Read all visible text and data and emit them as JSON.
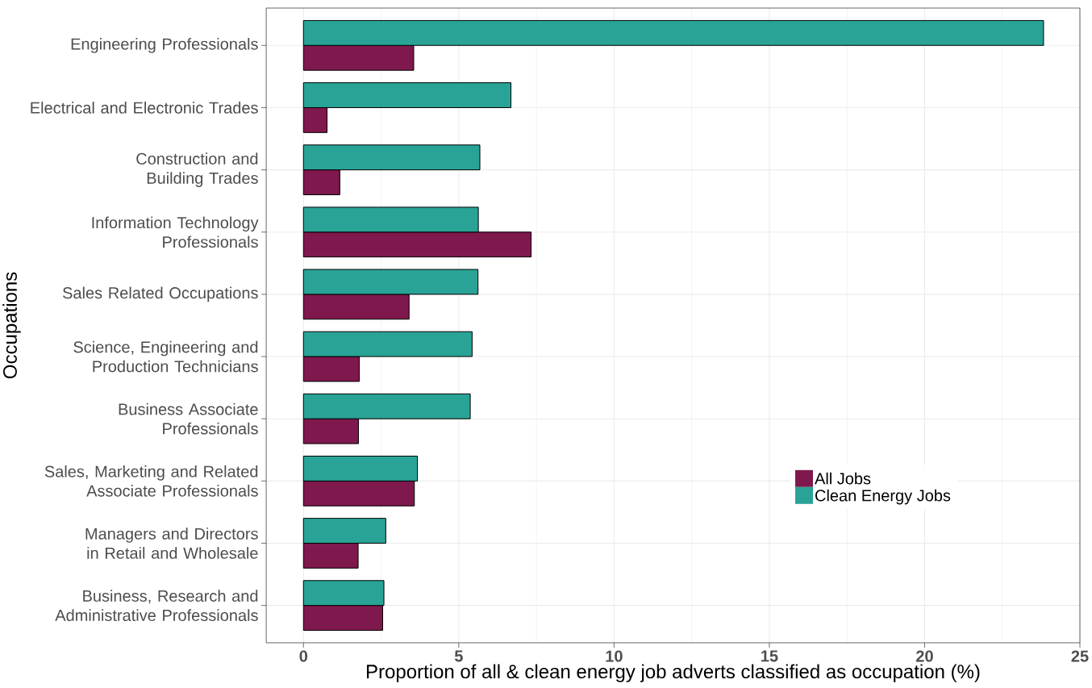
{
  "chart_data": {
    "type": "bar",
    "orientation": "horizontal",
    "xlabel": "Proportion of all & clean energy job adverts classified as occupation (%)",
    "ylabel": "Occupations",
    "categories": [
      "Engineering Professionals",
      "Electrical and Electronic Trades",
      "Construction and Building Trades",
      "Information Technology Professionals",
      "Sales Related Occupations",
      "Science, Engineering and Production Technicians",
      "Business Associate Professionals",
      "Sales, Marketing and Related Associate Professionals",
      "Managers and Directors in Retail and Wholesale",
      "Business, Research and Administrative Professionals"
    ],
    "series": [
      {
        "name": "All Jobs",
        "color": "#7f184d",
        "values": [
          3.55,
          0.76,
          1.17,
          7.33,
          3.4,
          1.8,
          1.77,
          3.57,
          1.76,
          2.55
        ]
      },
      {
        "name": "Clean Energy Jobs",
        "color": "#29a396",
        "values": [
          23.83,
          6.68,
          5.68,
          5.63,
          5.62,
          5.43,
          5.37,
          3.67,
          2.65,
          2.59
        ]
      }
    ],
    "xlim": [
      -1.2,
      25
    ],
    "xticks": [
      0,
      5,
      10,
      15,
      20,
      25
    ],
    "grid": true,
    "legend": "right"
  }
}
